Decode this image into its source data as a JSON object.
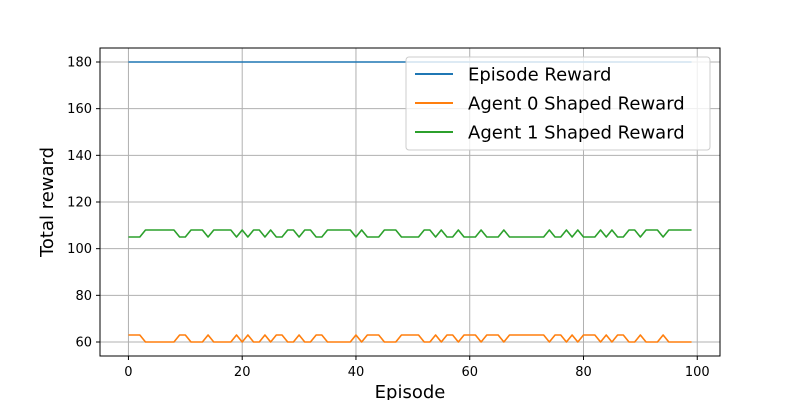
{
  "chart_data": {
    "type": "line",
    "title": "",
    "xlabel": "Episode",
    "ylabel": "Total reward",
    "xlim": [
      -5,
      104
    ],
    "ylim": [
      54,
      186
    ],
    "xticks": [
      0,
      20,
      40,
      60,
      80,
      100
    ],
    "yticks": [
      60,
      80,
      100,
      120,
      140,
      160,
      180
    ],
    "grid": true,
    "legend_position": "top-right",
    "x": [
      0,
      1,
      2,
      3,
      4,
      5,
      6,
      7,
      8,
      9,
      10,
      11,
      12,
      13,
      14,
      15,
      16,
      17,
      18,
      19,
      20,
      21,
      22,
      23,
      24,
      25,
      26,
      27,
      28,
      29,
      30,
      31,
      32,
      33,
      34,
      35,
      36,
      37,
      38,
      39,
      40,
      41,
      42,
      43,
      44,
      45,
      46,
      47,
      48,
      49,
      50,
      51,
      52,
      53,
      54,
      55,
      56,
      57,
      58,
      59,
      60,
      61,
      62,
      63,
      64,
      65,
      66,
      67,
      68,
      69,
      70,
      71,
      72,
      73,
      74,
      75,
      76,
      77,
      78,
      79,
      80,
      81,
      82,
      83,
      84,
      85,
      86,
      87,
      88,
      89,
      90,
      91,
      92,
      93,
      94,
      95,
      96,
      97,
      98,
      99
    ],
    "series": [
      {
        "name": "Episode Reward",
        "color": "#1f77b4",
        "values": [
          180,
          180,
          180,
          180,
          180,
          180,
          180,
          180,
          180,
          180,
          180,
          180,
          180,
          180,
          180,
          180,
          180,
          180,
          180,
          180,
          180,
          180,
          180,
          180,
          180,
          180,
          180,
          180,
          180,
          180,
          180,
          180,
          180,
          180,
          180,
          180,
          180,
          180,
          180,
          180,
          180,
          180,
          180,
          180,
          180,
          180,
          180,
          180,
          180,
          180,
          180,
          180,
          180,
          180,
          180,
          180,
          180,
          180,
          180,
          180,
          180,
          180,
          180,
          180,
          180,
          180,
          180,
          180,
          180,
          180,
          180,
          180,
          180,
          180,
          180,
          180,
          180,
          180,
          180,
          180,
          180,
          180,
          180,
          180,
          180,
          180,
          180,
          180,
          180,
          180,
          180,
          180,
          180,
          180,
          180,
          180,
          180,
          180,
          180,
          180
        ]
      },
      {
        "name": "Agent 0 Shaped Reward",
        "color": "#ff7f0e",
        "values": [
          63,
          63,
          63,
          60,
          60,
          60,
          60,
          60,
          60,
          63,
          63,
          60,
          60,
          60,
          63,
          60,
          60,
          60,
          60,
          63,
          60,
          63,
          60,
          60,
          63,
          60,
          63,
          63,
          60,
          60,
          63,
          60,
          60,
          63,
          63,
          60,
          60,
          60,
          60,
          60,
          63,
          60,
          63,
          63,
          63,
          60,
          60,
          60,
          63,
          63,
          63,
          63,
          60,
          60,
          63,
          60,
          63,
          63,
          60,
          63,
          63,
          63,
          60,
          63,
          63,
          63,
          60,
          63,
          63,
          63,
          63,
          63,
          63,
          63,
          60,
          63,
          63,
          60,
          63,
          60,
          63,
          63,
          63,
          60,
          63,
          60,
          63,
          63,
          60,
          60,
          63,
          60,
          60,
          60,
          63,
          60,
          60,
          60,
          60,
          60
        ]
      },
      {
        "name": "Agent 1 Shaped Reward",
        "color": "#2ca02c",
        "values": [
          105,
          105,
          105,
          108,
          108,
          108,
          108,
          108,
          108,
          105,
          105,
          108,
          108,
          108,
          105,
          108,
          108,
          108,
          108,
          105,
          108,
          105,
          108,
          108,
          105,
          108,
          105,
          105,
          108,
          108,
          105,
          108,
          108,
          105,
          105,
          108,
          108,
          108,
          108,
          108,
          105,
          108,
          105,
          105,
          105,
          108,
          108,
          108,
          105,
          105,
          105,
          105,
          108,
          108,
          105,
          108,
          105,
          105,
          108,
          105,
          105,
          105,
          108,
          105,
          105,
          105,
          108,
          105,
          105,
          105,
          105,
          105,
          105,
          105,
          108,
          105,
          105,
          108,
          105,
          108,
          105,
          105,
          105,
          108,
          105,
          108,
          105,
          105,
          108,
          108,
          105,
          108,
          108,
          108,
          105,
          108,
          108,
          108,
          108,
          108
        ]
      }
    ]
  }
}
